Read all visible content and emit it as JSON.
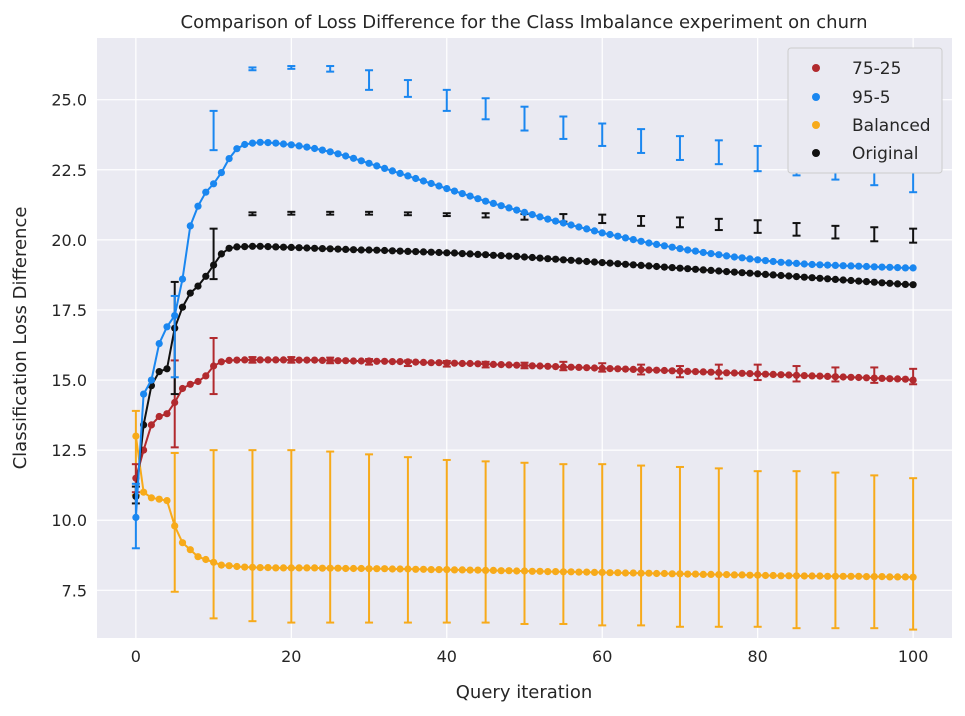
{
  "chart_data": {
    "type": "line",
    "title": "Comparison of Loss Difference for the Class Imbalance experiment on churn",
    "xlabel": "Query iteration",
    "ylabel": "Classification Loss Difference",
    "xlim": [
      -5,
      105
    ],
    "ylim": [
      5.8,
      27.2
    ],
    "xticks": [
      0,
      20,
      40,
      60,
      80,
      100
    ],
    "yticks": [
      7.5,
      10.0,
      12.5,
      15.0,
      17.5,
      20.0,
      22.5,
      25.0
    ],
    "xtick_labels": [
      "0",
      "20",
      "40",
      "60",
      "80",
      "100"
    ],
    "ytick_labels": [
      "7.5",
      "10.0",
      "12.5",
      "15.0",
      "17.5",
      "20.0",
      "22.5",
      "25.0"
    ],
    "grid": true,
    "legend_position": "top-right",
    "error_bar_every": 5,
    "series": [
      {
        "name": "75-25",
        "color": "#b22a2e",
        "values": [
          11.5,
          12.5,
          13.4,
          13.7,
          13.8,
          14.2,
          14.7,
          14.85,
          14.95,
          15.15,
          15.5,
          15.65,
          15.7,
          15.71,
          15.72,
          15.72,
          15.72,
          15.72,
          15.72,
          15.72,
          15.72,
          15.71,
          15.71,
          15.71,
          15.7,
          15.7,
          15.69,
          15.69,
          15.68,
          15.68,
          15.68,
          15.67,
          15.67,
          15.66,
          15.66,
          15.65,
          15.64,
          15.63,
          15.62,
          15.62,
          15.61,
          15.6,
          15.59,
          15.59,
          15.58,
          15.57,
          15.56,
          15.55,
          15.54,
          15.53,
          15.52,
          15.51,
          15.5,
          15.49,
          15.48,
          15.47,
          15.46,
          15.45,
          15.44,
          15.43,
          15.42,
          15.41,
          15.4,
          15.39,
          15.38,
          15.37,
          15.36,
          15.35,
          15.34,
          15.33,
          15.32,
          15.31,
          15.3,
          15.29,
          15.28,
          15.27,
          15.26,
          15.25,
          15.24,
          15.23,
          15.22,
          15.21,
          15.2,
          15.19,
          15.18,
          15.17,
          15.16,
          15.15,
          15.14,
          15.13,
          15.12,
          15.11,
          15.1,
          15.09,
          15.08,
          15.07,
          15.06,
          15.05,
          15.04,
          15.03,
          15.0
        ],
        "error_bars": [
          [
            11.0,
            12.0
          ],
          [
            12.6,
            15.7
          ],
          [
            14.5,
            16.5
          ],
          [
            15.62,
            15.82
          ],
          [
            15.62,
            15.82
          ],
          [
            15.6,
            15.8
          ],
          [
            15.55,
            15.75
          ],
          [
            15.5,
            15.7
          ],
          [
            15.48,
            15.68
          ],
          [
            15.45,
            15.65
          ],
          [
            15.42,
            15.62
          ],
          [
            15.35,
            15.65
          ],
          [
            15.3,
            15.6
          ],
          [
            15.2,
            15.55
          ],
          [
            15.1,
            15.5
          ],
          [
            15.05,
            15.55
          ],
          [
            15.0,
            15.55
          ],
          [
            14.95,
            15.5
          ],
          [
            14.95,
            15.45
          ],
          [
            14.9,
            15.45
          ],
          [
            14.85,
            15.4
          ]
        ]
      },
      {
        "name": "95-5",
        "color": "#1a87f0",
        "values": [
          10.1,
          14.5,
          15.0,
          16.3,
          16.9,
          17.3,
          18.6,
          20.5,
          21.2,
          21.7,
          22.0,
          22.4,
          22.9,
          23.25,
          23.4,
          23.45,
          23.48,
          23.47,
          23.45,
          23.42,
          23.39,
          23.35,
          23.31,
          23.26,
          23.2,
          23.14,
          23.07,
          22.99,
          22.91,
          22.82,
          22.73,
          22.64,
          22.55,
          22.46,
          22.37,
          22.28,
          22.19,
          22.1,
          22.01,
          21.92,
          21.83,
          21.74,
          21.65,
          21.56,
          21.47,
          21.38,
          21.3,
          21.22,
          21.14,
          21.06,
          20.98,
          20.9,
          20.82,
          20.74,
          20.67,
          20.6,
          20.53,
          20.46,
          20.39,
          20.32,
          20.25,
          20.19,
          20.13,
          20.07,
          20.01,
          19.95,
          19.89,
          19.84,
          19.79,
          19.74,
          19.69,
          19.64,
          19.6,
          19.55,
          19.51,
          19.47,
          19.43,
          19.39,
          19.36,
          19.32,
          19.29,
          19.26,
          19.23,
          19.2,
          19.18,
          19.16,
          19.14,
          19.12,
          19.11,
          19.1,
          19.09,
          19.08,
          19.07,
          19.06,
          19.05,
          19.04,
          19.03,
          19.02,
          19.01,
          19.0,
          19.0
        ],
        "error_bars": [
          [
            9.0,
            11.3
          ],
          [
            15.1,
            18.0
          ],
          [
            23.2,
            24.6
          ],
          [
            26.05,
            26.15
          ],
          [
            26.1,
            26.2
          ],
          [
            26.0,
            26.2
          ],
          [
            25.35,
            26.05
          ],
          [
            25.1,
            25.7
          ],
          [
            24.6,
            25.35
          ],
          [
            24.3,
            25.05
          ],
          [
            23.9,
            24.75
          ],
          [
            23.6,
            24.4
          ],
          [
            23.35,
            24.15
          ],
          [
            23.1,
            23.95
          ],
          [
            22.85,
            23.7
          ],
          [
            22.7,
            23.55
          ],
          [
            22.45,
            23.35
          ],
          [
            22.3,
            23.15
          ],
          [
            22.15,
            23.0
          ],
          [
            21.95,
            22.9
          ],
          [
            21.7,
            22.7
          ]
        ]
      },
      {
        "name": "Balanced",
        "color": "#f7aa1a",
        "values": [
          13.0,
          11.0,
          10.8,
          10.75,
          10.7,
          9.8,
          9.2,
          8.95,
          8.7,
          8.6,
          8.5,
          8.4,
          8.38,
          8.35,
          8.33,
          8.32,
          8.31,
          8.31,
          8.3,
          8.3,
          8.3,
          8.3,
          8.3,
          8.3,
          8.29,
          8.29,
          8.29,
          8.28,
          8.28,
          8.28,
          8.27,
          8.27,
          8.27,
          8.26,
          8.26,
          8.26,
          8.25,
          8.25,
          8.24,
          8.24,
          8.24,
          8.23,
          8.23,
          8.22,
          8.22,
          8.21,
          8.21,
          8.2,
          8.2,
          8.19,
          8.19,
          8.18,
          8.18,
          8.17,
          8.17,
          8.16,
          8.16,
          8.15,
          8.15,
          8.14,
          8.14,
          8.13,
          8.13,
          8.12,
          8.12,
          8.11,
          8.11,
          8.1,
          8.1,
          8.09,
          8.09,
          8.08,
          8.08,
          8.07,
          8.07,
          8.06,
          8.06,
          8.05,
          8.05,
          8.04,
          8.04,
          8.03,
          8.03,
          8.02,
          8.02,
          8.02,
          8.01,
          8.01,
          8.01,
          8.0,
          8.0,
          8.0,
          8.0,
          8.0,
          7.99,
          7.99,
          7.99,
          7.98,
          7.98,
          7.98,
          7.97
        ],
        "error_bars": [
          [
            10.9,
            13.9
          ],
          [
            7.45,
            12.4
          ],
          [
            6.5,
            12.5
          ],
          [
            6.4,
            12.5
          ],
          [
            6.35,
            12.5
          ],
          [
            6.35,
            12.45
          ],
          [
            6.35,
            12.35
          ],
          [
            6.35,
            12.25
          ],
          [
            6.35,
            12.15
          ],
          [
            6.35,
            12.1
          ],
          [
            6.3,
            12.05
          ],
          [
            6.3,
            12.0
          ],
          [
            6.25,
            12.0
          ],
          [
            6.25,
            11.95
          ],
          [
            6.2,
            11.9
          ],
          [
            6.2,
            11.85
          ],
          [
            6.2,
            11.75
          ],
          [
            6.15,
            11.75
          ],
          [
            6.15,
            11.7
          ],
          [
            6.15,
            11.6
          ],
          [
            6.1,
            11.5
          ]
        ]
      },
      {
        "name": "Original",
        "color": "#111111",
        "values": [
          10.85,
          13.4,
          14.8,
          15.3,
          15.4,
          16.85,
          17.6,
          18.1,
          18.35,
          18.7,
          19.1,
          19.5,
          19.7,
          19.75,
          19.76,
          19.77,
          19.77,
          19.76,
          19.75,
          19.74,
          19.73,
          19.72,
          19.71,
          19.7,
          19.69,
          19.68,
          19.67,
          19.66,
          19.65,
          19.64,
          19.64,
          19.63,
          19.62,
          19.61,
          19.6,
          19.59,
          19.58,
          19.57,
          19.56,
          19.55,
          19.54,
          19.53,
          19.51,
          19.5,
          19.48,
          19.47,
          19.45,
          19.44,
          19.42,
          19.41,
          19.39,
          19.37,
          19.35,
          19.33,
          19.31,
          19.29,
          19.27,
          19.25,
          19.23,
          19.21,
          19.19,
          19.17,
          19.15,
          19.13,
          19.11,
          19.09,
          19.07,
          19.05,
          19.03,
          19.01,
          18.99,
          18.97,
          18.95,
          18.93,
          18.91,
          18.89,
          18.87,
          18.85,
          18.83,
          18.81,
          18.79,
          18.77,
          18.75,
          18.73,
          18.71,
          18.69,
          18.67,
          18.65,
          18.63,
          18.61,
          18.59,
          18.57,
          18.55,
          18.53,
          18.51,
          18.49,
          18.47,
          18.45,
          18.43,
          18.41,
          18.4
        ],
        "error_bars": [
          [
            10.6,
            11.2
          ],
          [
            14.5,
            18.5
          ],
          [
            18.6,
            20.4
          ],
          [
            20.88,
            20.98
          ],
          [
            20.9,
            21.0
          ],
          [
            20.9,
            21.0
          ],
          [
            20.9,
            21.0
          ],
          [
            20.88,
            20.98
          ],
          [
            20.85,
            20.95
          ],
          [
            20.8,
            20.95
          ],
          [
            20.72,
            20.92
          ],
          [
            20.65,
            20.92
          ],
          [
            20.6,
            20.9
          ],
          [
            20.5,
            20.85
          ],
          [
            20.45,
            20.8
          ],
          [
            20.35,
            20.75
          ],
          [
            20.25,
            20.7
          ],
          [
            20.15,
            20.6
          ],
          [
            20.05,
            20.5
          ],
          [
            19.95,
            20.45
          ],
          [
            19.9,
            20.4
          ]
        ]
      }
    ]
  }
}
